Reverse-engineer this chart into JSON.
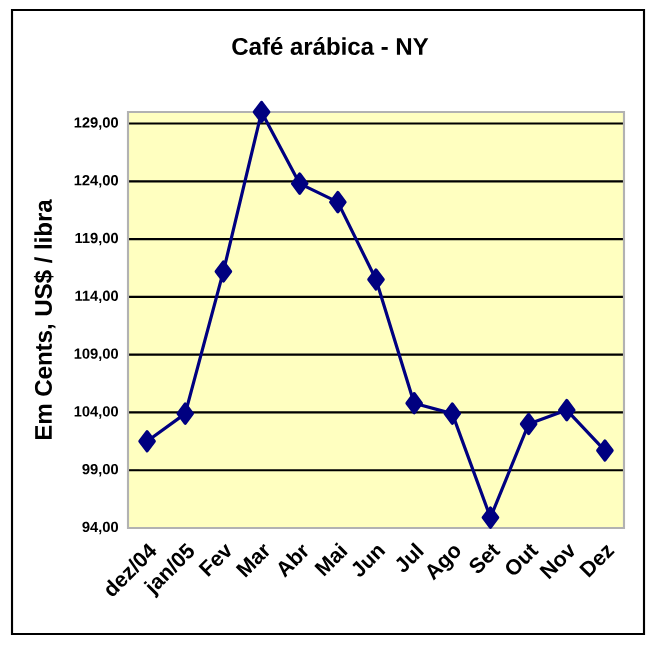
{
  "chart_data": {
    "type": "line",
    "title": "Café arábica - NY",
    "ylabel": "Em Cents, US$ / libra",
    "categories": [
      "dez/04",
      "jan/05",
      "Fev",
      "Mar",
      "Abr",
      "Mai",
      "Jun",
      "Jul",
      "Ago",
      "Set",
      "Out",
      "Nov",
      "Dez"
    ],
    "series": [
      {
        "color": "#000080",
        "values": [
          101.5,
          103.9,
          116.2,
          130,
          123.8,
          122.2,
          115.5,
          104.8,
          103.9,
          94.9,
          103.0,
          104.2,
          100.7
        ]
      }
    ],
    "ylim": [
      94,
      130
    ],
    "yticks": [
      {
        "value": 94,
        "label": "94,00"
      },
      {
        "value": 99,
        "label": "99,00"
      },
      {
        "value": 104,
        "label": "104,00"
      },
      {
        "value": 109,
        "label": "109,00"
      },
      {
        "value": 114,
        "label": "114,00"
      },
      {
        "value": 119,
        "label": "119,00"
      },
      {
        "value": 124,
        "label": "124,00"
      },
      {
        "value": 129,
        "label": "129,00"
      }
    ],
    "grid": "y",
    "marker": "diamond",
    "line_style": "solid"
  }
}
